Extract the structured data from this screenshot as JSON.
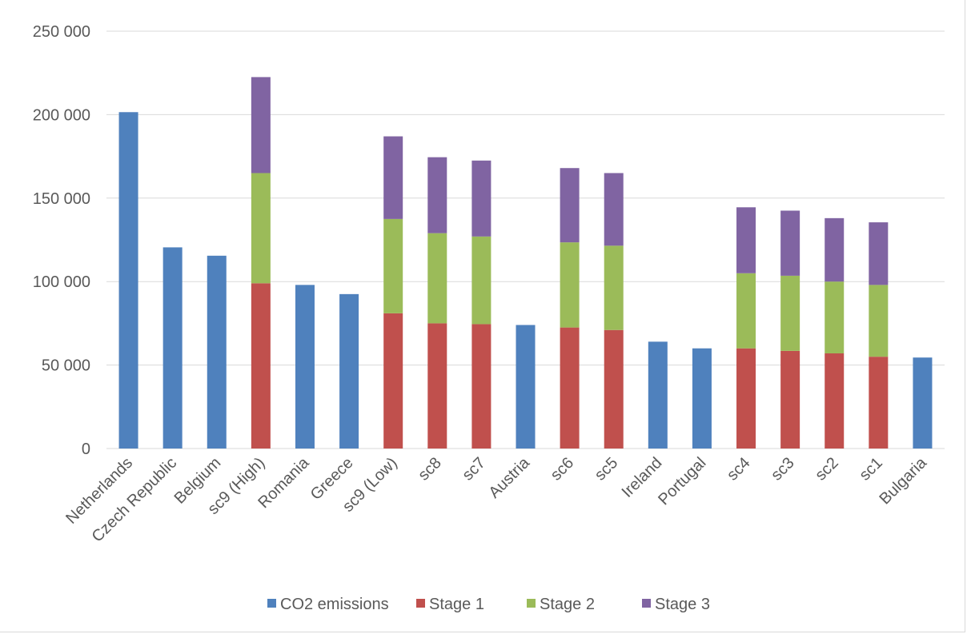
{
  "chart_data": {
    "type": "bar",
    "stacked": true,
    "categories": [
      "Netherlands",
      "Czech Republic",
      "Belgium",
      "sc9 (High)",
      "Romania",
      "Greece",
      "sc9 (Low)",
      "sc8",
      "sc7",
      "Austria",
      "sc6",
      "sc5",
      "Ireland",
      "Portugal",
      "sc4",
      "sc3",
      "sc2",
      "sc1",
      "Bulgaria"
    ],
    "series": [
      {
        "name": "CO2 emissions",
        "color": "#4f81bd",
        "values": [
          201500,
          120500,
          115500,
          0,
          98000,
          92500,
          0,
          0,
          0,
          74000,
          0,
          0,
          64000,
          60000,
          0,
          0,
          0,
          0,
          54500
        ]
      },
      {
        "name": "Stage 1",
        "color": "#c0504d",
        "values": [
          0,
          0,
          0,
          99000,
          0,
          0,
          81000,
          75000,
          74500,
          0,
          72500,
          71000,
          0,
          0,
          60000,
          58500,
          57000,
          55000,
          0
        ]
      },
      {
        "name": "Stage 2",
        "color": "#9bbb59",
        "values": [
          0,
          0,
          0,
          66000,
          0,
          0,
          56500,
          54000,
          52500,
          0,
          51000,
          50500,
          0,
          0,
          45000,
          45000,
          43000,
          43000,
          0
        ]
      },
      {
        "name": "Stage 3",
        "color": "#8064a2",
        "values": [
          0,
          0,
          0,
          57500,
          0,
          0,
          49500,
          45500,
          45500,
          0,
          44500,
          43500,
          0,
          0,
          39500,
          39000,
          38000,
          37500,
          0
        ]
      }
    ],
    "ylim": [
      0,
      250000
    ],
    "yticks": [
      0,
      50000,
      100000,
      150000,
      200000,
      250000
    ],
    "ytick_labels": [
      "0",
      "50 000",
      "100 000",
      "150 000",
      "200 000",
      "250 000"
    ],
    "xlabel": "",
    "ylabel": "",
    "title": "",
    "grid": true,
    "legend_position": "bottom"
  }
}
